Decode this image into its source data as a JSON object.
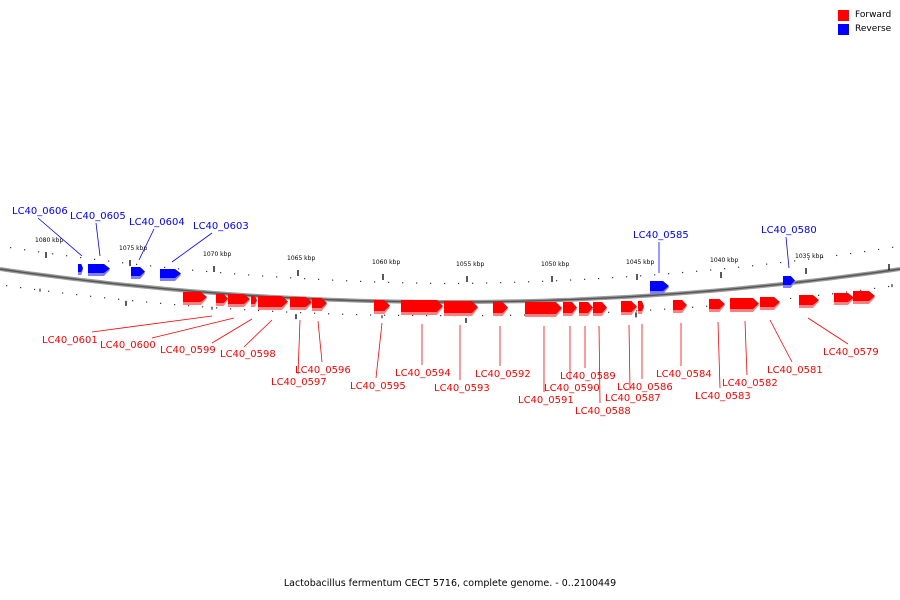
{
  "caption": "Lactobacillus fermentum CECT 5716, complete genome. - 0..2100449",
  "legend": [
    {
      "label": "Forward",
      "color": "#ff0000"
    },
    {
      "label": "Reverse",
      "color": "#0000ff"
    }
  ],
  "ruler_ticks": [
    "1080 kbp",
    "1075 kbp",
    "1070 kbp",
    "1065 kbp",
    "1060 kbp",
    "1055 kbp",
    "1050 kbp",
    "1045 kbp",
    "1040 kbp",
    "1035 kbp"
  ],
  "reverse_genes": [
    "LC40_0606",
    "LC40_0605",
    "LC40_0604",
    "LC40_0603",
    "LC40_0585",
    "LC40_0580"
  ],
  "forward_genes": [
    "LC40_0601",
    "LC40_0600",
    "LC40_0599",
    "LC40_0598",
    "LC40_0597",
    "LC40_0596",
    "LC40_0595",
    "LC40_0594",
    "LC40_0593",
    "LC40_0592",
    "LC40_0591",
    "LC40_0590",
    "LC40_0589",
    "LC40_0588",
    "LC40_0587",
    "LC40_0586",
    "LC40_0584",
    "LC40_0583",
    "LC40_0582",
    "LC40_0581",
    "LC40_0579"
  ]
}
